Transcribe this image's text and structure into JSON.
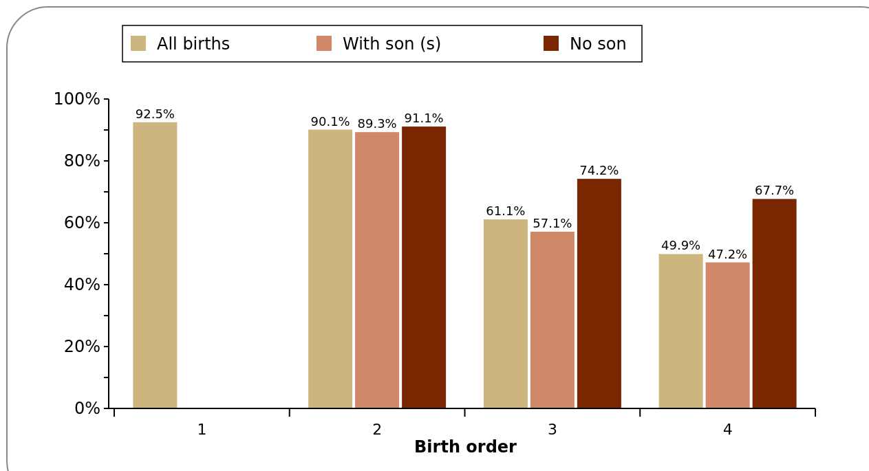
{
  "chart_data": {
    "type": "bar",
    "xlabel": "Birth order",
    "categories": [
      "1",
      "2",
      "3",
      "4"
    ],
    "series": [
      {
        "name": "All births",
        "color": "#cdb580",
        "values": [
          92.5,
          90.1,
          61.1,
          49.9
        ],
        "value_labels": [
          "92.5%",
          "90.1%",
          "61.1%",
          "49.9%"
        ]
      },
      {
        "name": "With son (s)",
        "color": "#d08868",
        "values": [
          null,
          89.3,
          57.1,
          47.2
        ],
        "value_labels": [
          null,
          "89.3%",
          "57.1%",
          "47.2%"
        ]
      },
      {
        "name": "No son",
        "color": "#7a2600",
        "values": [
          null,
          91.1,
          74.2,
          67.7
        ],
        "value_labels": [
          null,
          "91.1%",
          "74.2%",
          "67.7%"
        ]
      }
    ],
    "ylim": [
      0,
      100
    ],
    "yticks": [
      {
        "value": 0,
        "label": "0%"
      },
      {
        "value": 10,
        "label": null
      },
      {
        "value": 20,
        "label": "20%"
      },
      {
        "value": 30,
        "label": null
      },
      {
        "value": 40,
        "label": "40%"
      },
      {
        "value": 50,
        "label": null
      },
      {
        "value": 60,
        "label": "60%"
      },
      {
        "value": 70,
        "label": null
      },
      {
        "value": 80,
        "label": "80%"
      },
      {
        "value": 90,
        "label": null
      },
      {
        "value": 100,
        "label": "100%"
      }
    ],
    "grid": false,
    "legend": "top"
  }
}
